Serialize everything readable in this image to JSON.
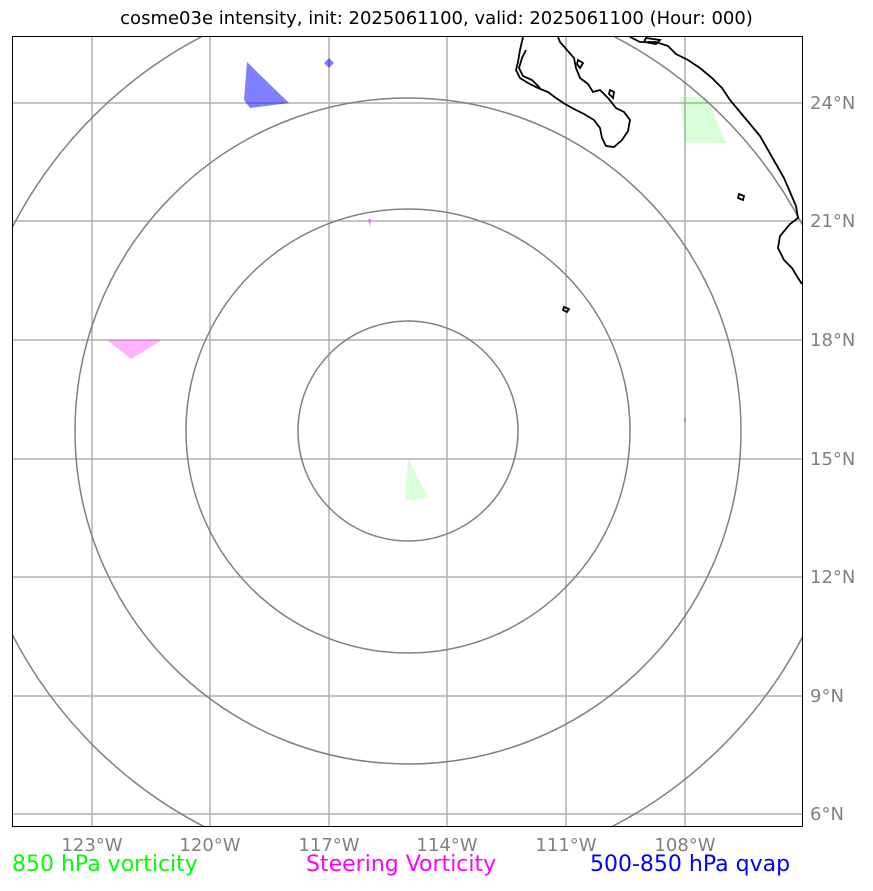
{
  "title": "cosme03e intensity, init: 2025061100, valid: 2025061100 (Hour: 000)",
  "map": {
    "lon_ticks": [
      "123°W",
      "120°W",
      "117°W",
      "114°W",
      "111°W",
      "108°W"
    ],
    "lat_ticks": [
      "24°N",
      "21°N",
      "18°N",
      "15°N",
      "12°N",
      "9°N",
      "6°N"
    ],
    "range_rings": 4,
    "colors": {
      "frame": "#000000",
      "gridlines": "#b0b0b0",
      "range_rings": "#808080",
      "coastline": "#000000",
      "vorticity_850": "#00ff00",
      "steering_vorticity": "#ff00ff",
      "qvap_500_850": "#0000ff"
    },
    "features": [
      "coastline",
      "850-hpa-vorticity-patch",
      "steering-vorticity-patch",
      "qvap-patch"
    ]
  },
  "legend": {
    "vorticity_850": "850 hPa vorticity",
    "steering": "Steering Vorticity",
    "qvap": "500-850 hPa qvap"
  }
}
